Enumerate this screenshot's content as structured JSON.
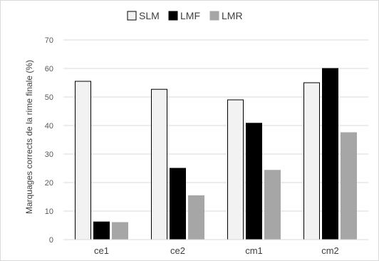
{
  "chart_data": {
    "type": "bar",
    "title": "",
    "xlabel": "",
    "ylabel": "Marquages corrects de la rime finale (%)",
    "categories": [
      "ce1",
      "ce2",
      "cm1",
      "cm2"
    ],
    "ylim": [
      0,
      70
    ],
    "yticks": [
      0,
      10,
      20,
      30,
      40,
      50,
      60,
      70
    ],
    "grid": "horizontal",
    "legend_position": "top",
    "series": [
      {
        "name": "SLM",
        "values": [
          55.5,
          52.7,
          49.0,
          55.0
        ],
        "color": "#f2f2f2",
        "stroke": "#000000"
      },
      {
        "name": "LMF",
        "values": [
          6.2,
          25.0,
          40.8,
          60.0
        ],
        "color": "#000000",
        "stroke": "#000000"
      },
      {
        "name": "LMR",
        "values": [
          6.0,
          15.4,
          24.3,
          37.5
        ],
        "color": "#a6a6a6",
        "stroke": "#a6a6a6"
      }
    ]
  }
}
